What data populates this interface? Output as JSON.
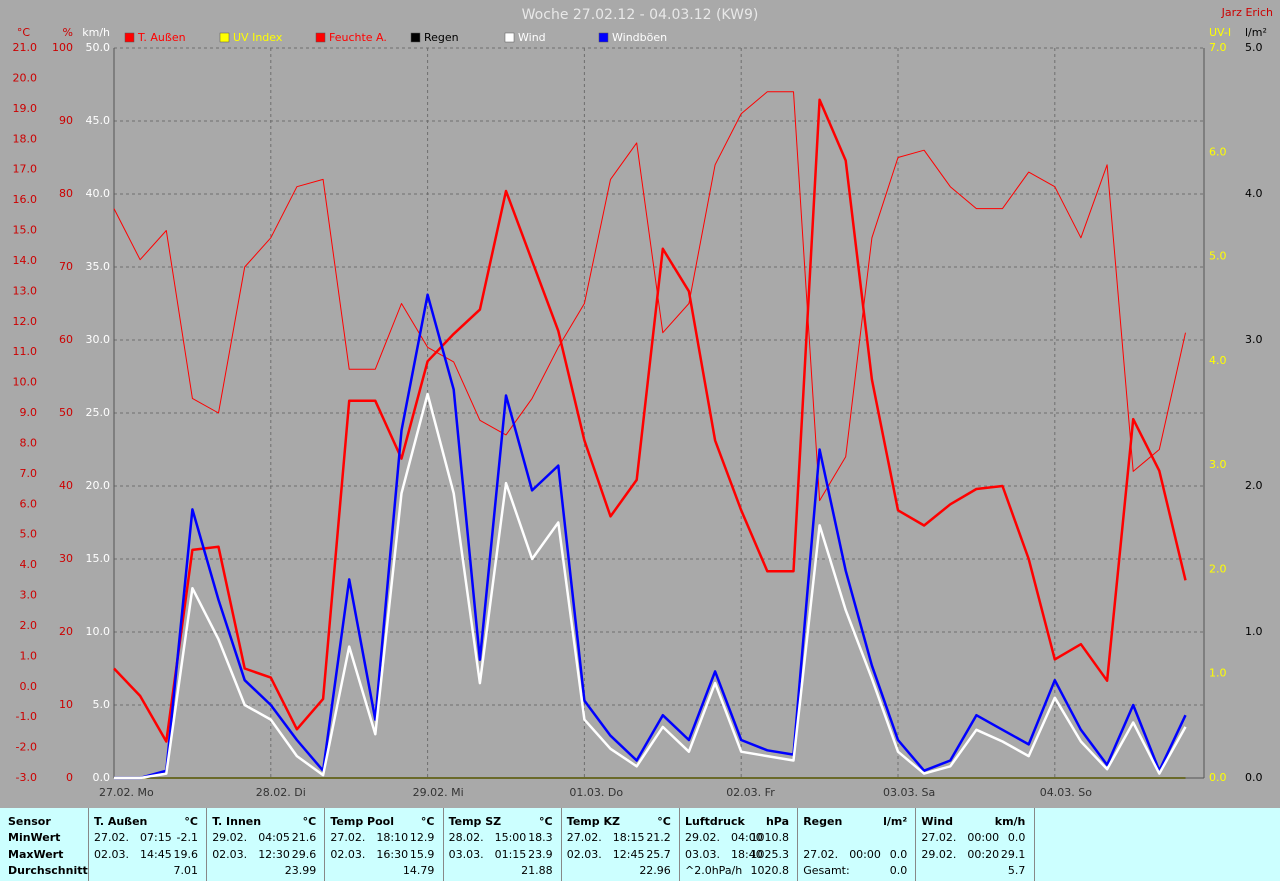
{
  "chart_data": {
    "type": "line",
    "title": "Woche 27.02.12 - 04.03.12 (KW9)",
    "author": "Jarz Erich",
    "categories": [
      "27.02. Mo",
      null,
      null,
      null,
      null,
      null,
      "28.02. Di",
      null,
      null,
      null,
      null,
      null,
      "29.02. Mi",
      null,
      null,
      null,
      null,
      null,
      "01.03. Do",
      null,
      null,
      null,
      null,
      null,
      "02.03. Fr",
      null,
      null,
      null,
      null,
      null,
      "03.03. Sa",
      null,
      null,
      null,
      null,
      null,
      "04.03. So",
      null,
      null,
      null,
      null,
      null
    ],
    "grid": true,
    "axes": {
      "celsius": {
        "label": "°C",
        "color": "#cc0000",
        "side": "left",
        "lim": [
          -3,
          21
        ],
        "ticks": [
          {
            "value": -3,
            "label": "-3.0"
          },
          {
            "value": -2,
            "label": "-2.0"
          },
          {
            "value": -1,
            "label": "-1.0"
          },
          {
            "value": 0,
            "label": "0.0"
          },
          {
            "value": 1,
            "label": "1.0"
          },
          {
            "value": 2,
            "label": "2.0"
          },
          {
            "value": 3,
            "label": "3.0"
          },
          {
            "value": 4,
            "label": "4.0"
          },
          {
            "value": 5,
            "label": "5.0"
          },
          {
            "value": 6,
            "label": "6.0"
          },
          {
            "value": 7,
            "label": "7.0"
          },
          {
            "value": 8,
            "label": "8.0"
          },
          {
            "value": 9,
            "label": "9.0"
          },
          {
            "value": 10,
            "label": "10.0"
          },
          {
            "value": 11,
            "label": "11.0"
          },
          {
            "value": 12,
            "label": "12.0"
          },
          {
            "value": 13,
            "label": "13.0"
          },
          {
            "value": 14,
            "label": "14.0"
          },
          {
            "value": 15,
            "label": "15.0"
          },
          {
            "value": 16,
            "label": "16.0"
          },
          {
            "value": 17,
            "label": "17.0"
          },
          {
            "value": 18,
            "label": "18.0"
          },
          {
            "value": 19,
            "label": "19.0"
          },
          {
            "value": 20,
            "label": "20.0"
          },
          {
            "value": 21,
            "label": "21.0"
          }
        ]
      },
      "percent": {
        "label": "%",
        "color": "#cc0000",
        "side": "left",
        "lim": [
          0,
          100
        ],
        "ticks": [
          0,
          10,
          20,
          30,
          40,
          50,
          60,
          70,
          80,
          90,
          100
        ]
      },
      "kmh": {
        "label": "km/h",
        "color": "#ffffff",
        "side": "left",
        "lim": [
          0,
          50
        ],
        "grid": true,
        "ticks": [
          {
            "value": 0,
            "label": "0.0"
          },
          {
            "value": 5,
            "label": "5.0"
          },
          {
            "value": 10,
            "label": "10.0"
          },
          {
            "value": 15,
            "label": "15.0"
          },
          {
            "value": 20,
            "label": "20.0"
          },
          {
            "value": 25,
            "label": "25.0"
          },
          {
            "value": 30,
            "label": "30.0"
          },
          {
            "value": 35,
            "label": "35.0"
          },
          {
            "value": 40,
            "label": "40.0"
          },
          {
            "value": 45,
            "label": "45.0"
          },
          {
            "value": 50,
            "label": "50.0"
          }
        ]
      },
      "uv": {
        "label": "UV-I",
        "color": "#ffff00",
        "side": "right",
        "lim": [
          0,
          7
        ],
        "ticks": [
          {
            "value": 0,
            "label": "0.0"
          },
          {
            "value": 1,
            "label": "1.0"
          },
          {
            "value": 2,
            "label": "2.0"
          },
          {
            "value": 3,
            "label": "3.0"
          },
          {
            "value": 4,
            "label": "4.0"
          },
          {
            "value": 5,
            "label": "5.0"
          },
          {
            "value": 6,
            "label": "6.0"
          },
          {
            "value": 7,
            "label": "7.0"
          }
        ]
      },
      "rain": {
        "label": "l/m²",
        "color": "#000000",
        "side": "right",
        "lim": [
          0,
          5
        ],
        "ticks": [
          {
            "value": 0,
            "label": "0.0"
          },
          {
            "value": 1,
            "label": "1.0"
          },
          {
            "value": 2,
            "label": "2.0"
          },
          {
            "value": 3,
            "label": "3.0"
          },
          {
            "value": 4,
            "label": "4.0"
          },
          {
            "value": 5,
            "label": "5.0"
          }
        ]
      }
    },
    "series": [
      {
        "name": "T. Außen",
        "color": "#ff0000",
        "label_color": "#ff0000",
        "axis": "celsius",
        "width": 2.5,
        "values": [
          0.6,
          -0.3,
          -1.8,
          4.5,
          4.6,
          0.6,
          0.3,
          -1.4,
          -0.4,
          9.4,
          9.4,
          7.5,
          10.7,
          11.6,
          12.4,
          16.3,
          14.0,
          11.7,
          8.1,
          5.6,
          6.8,
          14.4,
          13.0,
          8.1,
          5.8,
          3.8,
          3.8,
          19.3,
          17.3,
          10.1,
          5.8,
          5.3,
          6.0,
          6.5,
          6.6,
          4.2,
          0.9,
          1.4,
          0.2,
          8.8,
          7.1,
          3.5
        ]
      },
      {
        "name": "UV Index",
        "color": "#ffff00",
        "label_color": "#ffff00",
        "axis": "uv",
        "width": 1.5,
        "values": [
          0,
          0,
          0,
          0,
          0,
          0,
          0,
          0,
          0,
          0,
          0,
          0,
          0,
          0,
          0,
          0,
          0,
          0,
          0,
          0,
          0,
          0,
          0,
          0,
          0,
          0,
          0,
          0,
          0,
          0,
          0,
          0,
          0,
          0,
          0,
          0,
          0,
          0,
          0,
          0,
          0,
          0
        ]
      },
      {
        "name": "Feuchte A.",
        "color": "#ff0000",
        "label_color": "#ff0000",
        "axis": "percent",
        "width": 1,
        "values": [
          78,
          71,
          75,
          52,
          50,
          70,
          74,
          81,
          82,
          56,
          56,
          65,
          59,
          57,
          49,
          47,
          52,
          59,
          65,
          82,
          87,
          61,
          65,
          84,
          91,
          94,
          94,
          38,
          44,
          74,
          85,
          86,
          81,
          78,
          78,
          83,
          81,
          74,
          84,
          42,
          45,
          61
        ]
      },
      {
        "name": "Regen",
        "color": "#000000",
        "label_color": "#000000",
        "axis": "rain",
        "width": 1,
        "values": [
          0,
          0,
          0,
          0,
          0,
          0,
          0,
          0,
          0,
          0,
          0,
          0,
          0,
          0,
          0,
          0,
          0,
          0,
          0,
          0,
          0,
          0,
          0,
          0,
          0,
          0,
          0,
          0,
          0,
          0,
          0,
          0,
          0,
          0,
          0,
          0,
          0,
          0,
          0,
          0,
          0,
          0
        ]
      },
      {
        "name": "Wind",
        "color": "#ffffff",
        "label_color": "#ffffff",
        "axis": "kmh",
        "width": 2.5,
        "values": [
          0,
          0,
          0.3,
          13.0,
          9.5,
          5.0,
          4.0,
          1.5,
          0.2,
          9.0,
          3.0,
          19.5,
          26.3,
          19.5,
          6.5,
          20.2,
          15.0,
          17.5,
          4.0,
          2.0,
          0.8,
          3.5,
          1.8,
          6.5,
          1.8,
          1.5,
          1.2,
          17.3,
          11.5,
          6.8,
          1.8,
          0.3,
          0.8,
          3.3,
          2.5,
          1.5,
          5.5,
          2.5,
          0.6,
          3.8,
          0.3,
          3.5
        ]
      },
      {
        "name": "Windböen",
        "color": "#0000ff",
        "label_color": "#ffffff",
        "axis": "kmh",
        "width": 2.5,
        "values": [
          0,
          0,
          0.5,
          18.4,
          12.2,
          6.7,
          5.0,
          2.6,
          0.5,
          13.6,
          4.0,
          23.8,
          33.1,
          26.6,
          8.1,
          26.2,
          19.7,
          21.4,
          5.3,
          2.9,
          1.2,
          4.3,
          2.6,
          7.3,
          2.6,
          1.9,
          1.6,
          22.5,
          14.2,
          7.7,
          2.6,
          0.5,
          1.2,
          4.3,
          3.3,
          2.3,
          6.7,
          3.3,
          0.9,
          5.0,
          0.5,
          4.3
        ]
      }
    ],
    "draw_order": [
      1,
      3,
      2,
      0,
      5,
      4
    ]
  },
  "table": {
    "row_labels": [
      "Sensor",
      "MinWert",
      "MaxWert",
      "Durchschnitt"
    ],
    "groups": [
      {
        "name": "T. Außen",
        "unit": "°C",
        "rows": [
          [
            "27.02.",
            "07:15",
            "-2.1"
          ],
          [
            "02.03.",
            "14:45",
            "19.6"
          ],
          [
            null,
            null,
            "7.01"
          ]
        ]
      },
      {
        "name": "T. Innen",
        "unit": "°C",
        "rows": [
          [
            "29.02.",
            "04:05",
            "21.6"
          ],
          [
            "02.03.",
            "12:30",
            "29.6"
          ],
          [
            null,
            null,
            "23.99"
          ]
        ]
      },
      {
        "name": "Temp Pool",
        "unit": "°C",
        "rows": [
          [
            "27.02.",
            "18:10",
            "12.9"
          ],
          [
            "02.03.",
            "16:30",
            "15.9"
          ],
          [
            null,
            null,
            "14.79"
          ]
        ]
      },
      {
        "name": "Temp SZ",
        "unit": "°C",
        "rows": [
          [
            "28.02.",
            "15:00",
            "18.3"
          ],
          [
            "03.03.",
            "01:15",
            "23.9"
          ],
          [
            null,
            null,
            "21.88"
          ]
        ]
      },
      {
        "name": "Temp KZ",
        "unit": "°C",
        "rows": [
          [
            "27.02.",
            "18:15",
            "21.2"
          ],
          [
            "02.03.",
            "12:45",
            "25.7"
          ],
          [
            null,
            null,
            "22.96"
          ]
        ]
      },
      {
        "name": "Luftdruck",
        "unit": "hPa",
        "rows": [
          [
            "29.02.",
            "04:00",
            "1010.8"
          ],
          [
            "03.03.",
            "18:40",
            "1025.3"
          ],
          [
            "^2.0hPa/h",
            null,
            "1020.8"
          ]
        ]
      },
      {
        "name": "Regen",
        "unit": "l/m²",
        "rows": [
          [
            null,
            null,
            null
          ],
          [
            "27.02.",
            "00:00",
            "0.0"
          ],
          [
            "Gesamt:",
            null,
            "0.0"
          ]
        ]
      },
      {
        "name": "Wind",
        "unit": "km/h",
        "rows": [
          [
            "27.02.",
            "00:00",
            "0.0"
          ],
          [
            "29.02.",
            "00:20",
            "29.1"
          ],
          [
            null,
            null,
            "5.7"
          ]
        ]
      }
    ]
  }
}
